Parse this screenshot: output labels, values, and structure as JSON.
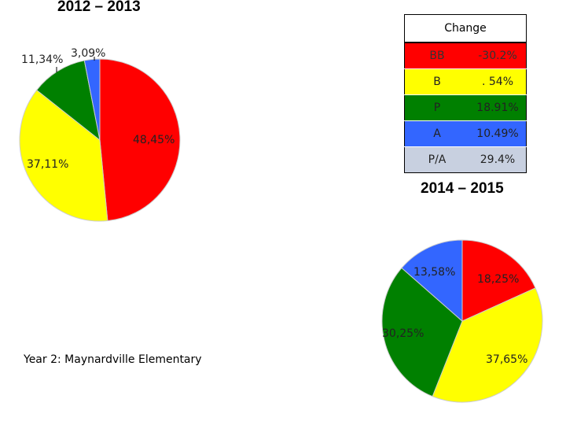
{
  "chart_data": [
    {
      "type": "pie",
      "title": "2012 – 2013",
      "categories": [
        "BB",
        "B",
        "P",
        "A"
      ],
      "values": [
        48.45,
        37.11,
        11.34,
        3.09
      ],
      "labels": [
        "48,45%",
        "37,11%",
        "11,34%",
        "3,09%"
      ],
      "colors": [
        "#ff0000",
        "#ffff00",
        "#008000",
        "#3366ff"
      ]
    },
    {
      "type": "pie",
      "title": "2014 – 2015",
      "categories": [
        "BB",
        "B",
        "P",
        "A"
      ],
      "values": [
        18.25,
        37.65,
        30.25,
        13.58
      ],
      "labels": [
        "18,25%",
        "37,65%",
        "30,25%",
        "13,58%"
      ],
      "colors": [
        "#ff0000",
        "#ffff00",
        "#008000",
        "#3366ff"
      ]
    },
    {
      "type": "table",
      "title": "Change",
      "rows": [
        {
          "label": "BB",
          "value": "-30.2%",
          "color": "#ff0000"
        },
        {
          "label": "B",
          "value": ". 54%",
          "color": "#ffff00"
        },
        {
          "label": "P",
          "value": "18.91%",
          "color": "#008000"
        },
        {
          "label": "A",
          "value": "10.49%",
          "color": "#3366ff"
        },
        {
          "label": "P/A",
          "value": "29.4%",
          "color": "#c8d0e0"
        }
      ]
    }
  ],
  "footer": {
    "school": "Year 2: Maynardville Elementary"
  }
}
